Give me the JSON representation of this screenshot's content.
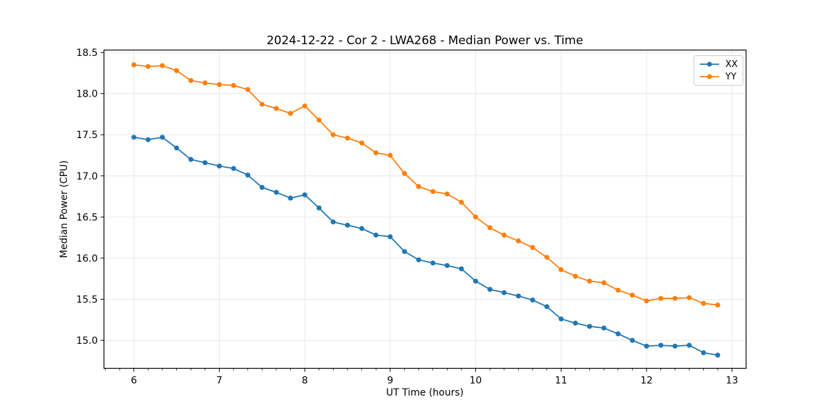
{
  "chart_data": {
    "type": "line",
    "title": "2024-12-22 - Cor 2 - LWA268 - Median Power vs. Time",
    "xlabel": "UT Time (hours)",
    "ylabel": "Median Power (CPU)",
    "xlim": [
      5.65,
      13.165
    ],
    "ylim": [
      14.66,
      18.53
    ],
    "x_ticks": [
      6,
      7,
      8,
      9,
      10,
      11,
      12,
      13
    ],
    "x_tick_labels": [
      "6",
      "7",
      "8",
      "9",
      "10",
      "11",
      "12",
      "13"
    ],
    "x_minor_tick_interval": 0.166667,
    "y_ticks": [
      15.0,
      15.5,
      16.0,
      16.5,
      17.0,
      17.5,
      18.0,
      18.5
    ],
    "y_tick_labels": [
      "15.0",
      "15.5",
      "16.0",
      "16.5",
      "17.0",
      "17.5",
      "18.0",
      "18.5"
    ],
    "grid": true,
    "grid_color": "#e6e6e6",
    "spine_color": "#000000",
    "legend_position": "upper right",
    "x": [
      6.0,
      6.167,
      6.333,
      6.5,
      6.667,
      6.833,
      7.0,
      7.167,
      7.333,
      7.5,
      7.667,
      7.833,
      8.0,
      8.167,
      8.333,
      8.5,
      8.667,
      8.833,
      9.0,
      9.167,
      9.333,
      9.5,
      9.667,
      9.833,
      10.0,
      10.167,
      10.333,
      10.5,
      10.667,
      10.833,
      11.0,
      11.167,
      11.333,
      11.5,
      11.667,
      11.833,
      12.0,
      12.167,
      12.333,
      12.5,
      12.667,
      12.833
    ],
    "series": [
      {
        "name": "XX",
        "color": "#1f77b4",
        "marker": "circle",
        "values": [
          17.47,
          17.44,
          17.47,
          17.34,
          17.2,
          17.16,
          17.12,
          17.09,
          17.01,
          16.86,
          16.8,
          16.73,
          16.77,
          16.61,
          16.44,
          16.4,
          16.36,
          16.28,
          16.26,
          16.08,
          15.98,
          15.94,
          15.91,
          15.87,
          15.72,
          15.62,
          15.58,
          15.54,
          15.49,
          15.41,
          15.26,
          15.21,
          15.17,
          15.15,
          15.08,
          15.0,
          14.93,
          14.94,
          14.93,
          14.94,
          14.85,
          14.82
        ]
      },
      {
        "name": "YY",
        "color": "#ff7f0e",
        "marker": "circle",
        "values": [
          18.35,
          18.33,
          18.34,
          18.28,
          18.16,
          18.13,
          18.11,
          18.1,
          18.05,
          17.87,
          17.82,
          17.76,
          17.85,
          17.68,
          17.5,
          17.46,
          17.4,
          17.28,
          17.25,
          17.03,
          16.87,
          16.81,
          16.78,
          16.68,
          16.5,
          16.37,
          16.28,
          16.21,
          16.13,
          16.01,
          15.86,
          15.78,
          15.72,
          15.7,
          15.61,
          15.55,
          15.48,
          15.51,
          15.51,
          15.52,
          15.45,
          15.43
        ]
      }
    ]
  }
}
